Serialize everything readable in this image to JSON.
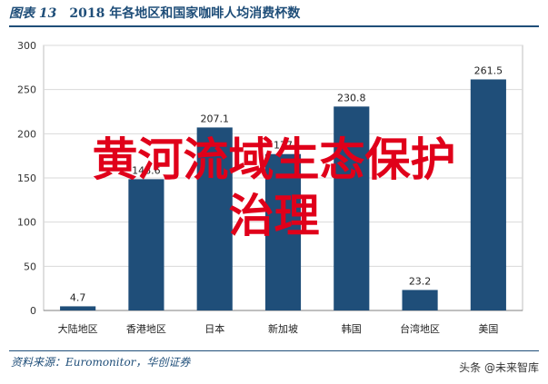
{
  "header": {
    "figure_no": "图表 13",
    "title": "2018 年各地区和国家咖啡人均消费杯数"
  },
  "chart_data": {
    "type": "bar",
    "categories": [
      "大陆地区",
      "香港地区",
      "日本",
      "新加坡",
      "韩国",
      "台湾地区",
      "美国"
    ],
    "values": [
      4.7,
      148.6,
      207.1,
      177.0,
      230.8,
      23.2,
      261.5
    ],
    "value_labels": [
      "4.7",
      "148.6",
      "207.1",
      "177",
      "230.8",
      "23.2",
      "261.5"
    ],
    "yticks": [
      0,
      50,
      100,
      150,
      200,
      250,
      300
    ],
    "ylim": [
      0,
      300
    ],
    "grid": true,
    "bar_color": "#1f4e79"
  },
  "source": "资料来源：Euromonitor，华创证券",
  "overlay": {
    "line1": "黄河流域生态保护",
    "line2": "治理"
  },
  "brand": "头条 @未来智库"
}
